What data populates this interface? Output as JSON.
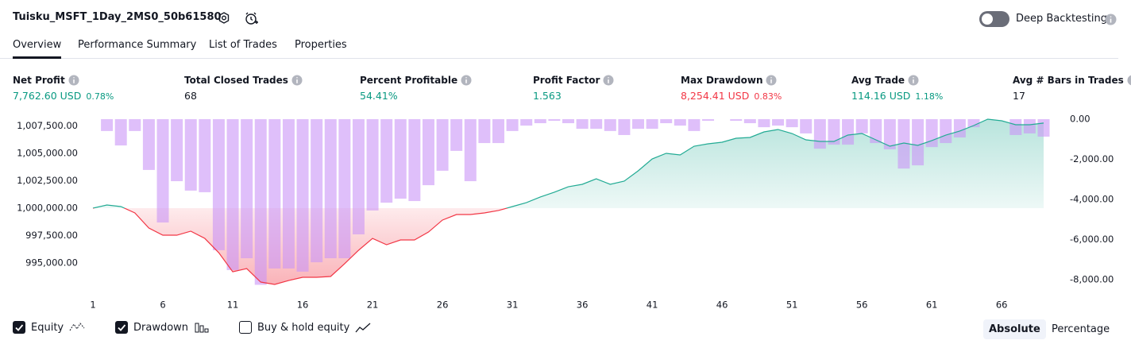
{
  "header": {
    "title": "Tuisku_MSFT_1Day_2MS0_50b61580",
    "deep_backtesting": "Deep Backtesting",
    "deep_backtesting_on": false
  },
  "tabs": [
    "Overview",
    "Performance Summary",
    "List of Trades",
    "Properties"
  ],
  "active_tab": 0,
  "stats": [
    {
      "label": "Net Profit",
      "value": "7,762.60 USD",
      "percent": "0.78%",
      "color": "#089981"
    },
    {
      "label": "Total Closed Trades",
      "value": "68",
      "color": "#131722"
    },
    {
      "label": "Percent Profitable",
      "value": "54.41%",
      "color": "#089981"
    },
    {
      "label": "Profit Factor",
      "value": "1.563",
      "color": "#089981"
    },
    {
      "label": "Max Drawdown",
      "value": "8,254.41 USD",
      "percent": "0.83%",
      "color": "#f23645"
    },
    {
      "label": "Avg Trade",
      "value": "114.16 USD",
      "percent": "1.18%",
      "color": "#089981"
    },
    {
      "label": "Avg # Bars in Trades",
      "value": "17",
      "color": "#131722"
    }
  ],
  "chart_data": {
    "type": "combo",
    "x": [
      1,
      2,
      3,
      4,
      5,
      6,
      7,
      8,
      9,
      10,
      11,
      12,
      13,
      14,
      15,
      16,
      17,
      18,
      19,
      20,
      21,
      22,
      23,
      24,
      25,
      26,
      27,
      28,
      29,
      30,
      31,
      32,
      33,
      34,
      35,
      36,
      37,
      38,
      39,
      40,
      41,
      42,
      43,
      44,
      45,
      46,
      47,
      48,
      49,
      50,
      51,
      52,
      53,
      54,
      55,
      56,
      57,
      58,
      59,
      60,
      61,
      62,
      63,
      64,
      65,
      66,
      67,
      68,
      69
    ],
    "xlim": [
      1,
      69
    ],
    "xticks": [
      1,
      6,
      11,
      16,
      21,
      26,
      31,
      36,
      41,
      46,
      51,
      56,
      61,
      66
    ],
    "ylim": [
      992030,
      1008115
    ],
    "yticks": [
      {
        "value": 995000,
        "label": "995,000.00"
      },
      {
        "value": 997500,
        "label": "997,500.00"
      },
      {
        "value": 1000000,
        "label": "1,000,000.00"
      },
      {
        "value": 1002500,
        "label": "1,002,500.00"
      },
      {
        "value": 1005000,
        "label": "1,005,000.00"
      },
      {
        "value": 1007500,
        "label": "1,007,500.00"
      }
    ],
    "y2lim": [
      -8790,
      0
    ],
    "y2ticks": [
      {
        "value": 0,
        "label": "0.00"
      },
      {
        "value": -2000,
        "label": "-2,000.00"
      },
      {
        "value": -4000,
        "label": "-4,000.00"
      },
      {
        "value": -6000,
        "label": "-6,000.00"
      },
      {
        "value": -8000,
        "label": "-8,000.00"
      }
    ],
    "series": [
      {
        "name": "Equity",
        "type": "line",
        "checked": true,
        "color": "#22ab94",
        "color_down": "#f23645",
        "values": [
          1000000,
          1000290,
          1000145,
          999565,
          998190,
          997535,
          997535,
          997900,
          997245,
          995940,
          994200,
          994490,
          993260,
          993045,
          993405,
          993695,
          993695,
          993770,
          994930,
          996160,
          997245,
          996665,
          997100,
          997100,
          997825,
          998915,
          999420,
          999420,
          999565,
          999785,
          1000145,
          1000505,
          1001015,
          1001450,
          1001955,
          1002175,
          1002680,
          1002175,
          1002465,
          1003405,
          1004490,
          1005000,
          1004855,
          1005650,
          1005870,
          1006015,
          1006375,
          1006450,
          1006955,
          1007175,
          1006810,
          1006230,
          1006085,
          1006085,
          1006665,
          1006810,
          1006230,
          1005650,
          1005940,
          1005725,
          1006160,
          1006665,
          1007030,
          1007535,
          1008115,
          1007970,
          1007610,
          1007610,
          1007762.6
        ]
      },
      {
        "name": "Drawdown",
        "type": "bar",
        "axis": "y2",
        "checked": true,
        "color": "#c994f6",
        "values": [
          null,
          -590,
          -1310,
          -590,
          -2530,
          -5150,
          -3090,
          -3560,
          -3640,
          -6530,
          -7520,
          -6930,
          -8254.41,
          -7440,
          -7440,
          -7600,
          -7130,
          -6930,
          -6930,
          -5740,
          -4550,
          -4160,
          -3960,
          -4080,
          -3290,
          -2570,
          -1580,
          -3090,
          -1190,
          -1190,
          -590,
          -320,
          -200,
          -80,
          -200,
          -480,
          -480,
          -590,
          -790,
          -480,
          -480,
          -200,
          -320,
          -590,
          -80,
          0,
          -80,
          -200,
          -400,
          -320,
          -400,
          -710,
          -1470,
          -1270,
          -1270,
          -710,
          -1190,
          -1500,
          -2460,
          -2300,
          -1390,
          -1190,
          -910,
          -400,
          0,
          0,
          -790,
          -710,
          -870
        ]
      }
    ],
    "buy_hold": {
      "label": "Buy & hold equity",
      "checked": false
    }
  },
  "scale_modes": [
    "Absolute",
    "Percentage"
  ],
  "active_scale": 0
}
